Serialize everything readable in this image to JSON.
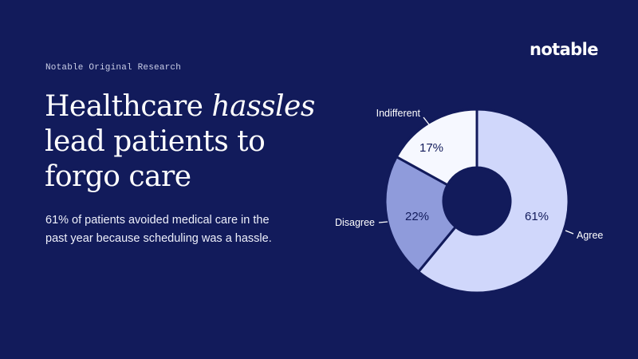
{
  "brand": {
    "logo_text": "notable",
    "eyebrow": "Notable Original Research"
  },
  "headline": {
    "line1_prefix": "Healthcare ",
    "line1_emphasis": "hassles",
    "line2": "lead patients to",
    "line3": "forgo care"
  },
  "subtitle": {
    "line1": "61% of patients avoided medical care in the",
    "line2": "past year because scheduling was a hassle."
  },
  "colors": {
    "background": "#121b5b",
    "agree": "#d0d7fb",
    "disagree": "#8f9bdb",
    "indifferent": "#f6f8ff",
    "percent_text": "#121b5b",
    "label_text": "#ffffff"
  },
  "chart_data": {
    "type": "pie",
    "variant": "donut",
    "title": "Healthcare hassles lead patients to forgo care",
    "start_angle_deg": 0,
    "direction": "clockwise",
    "categories": [
      "Agree",
      "Disagree",
      "Indifferent"
    ],
    "values": [
      61,
      22,
      17
    ],
    "value_labels": [
      "61%",
      "22%",
      "17%"
    ],
    "unit": "%",
    "legend": "none (direct labels with leader lines)"
  }
}
